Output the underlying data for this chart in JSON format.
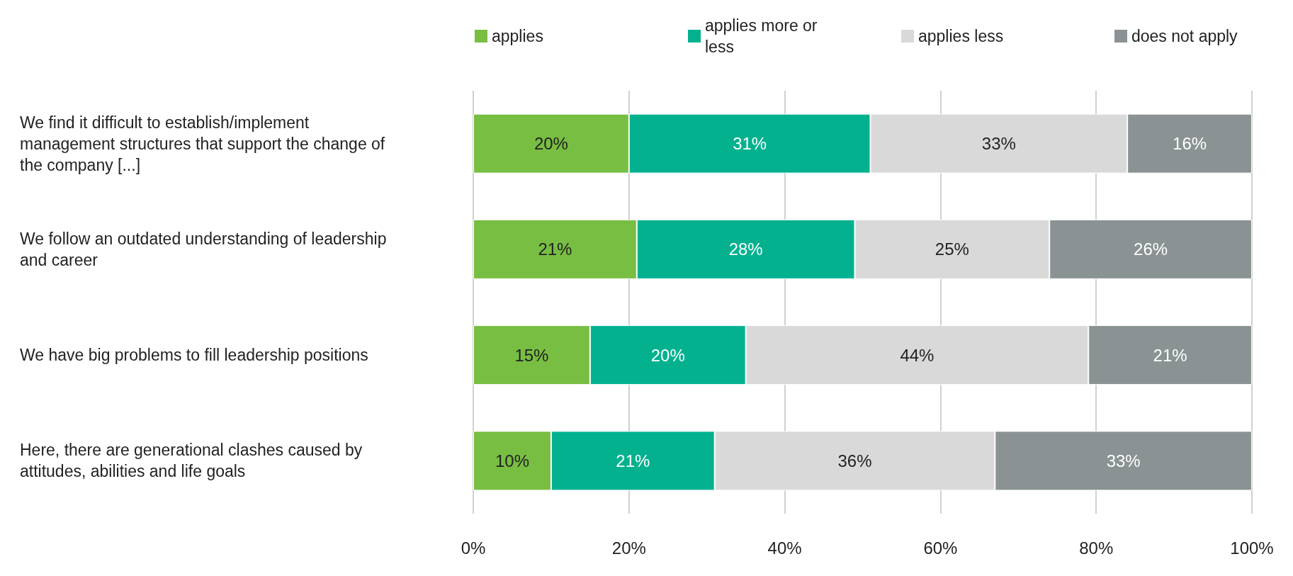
{
  "chart_data": {
    "type": "bar",
    "orientation": "horizontal",
    "stacked": true,
    "categories": [
      "We find it difficult to establish/implement management structures that support the change of the company [...]",
      "We follow an outdated understanding of leadership and career",
      "We have big problems to fill leadership positions",
      "Here, there are generational clashes caused by attitudes, abilities and life goals"
    ],
    "series": [
      {
        "name": "applies",
        "color": "#78be43",
        "values": [
          20,
          21,
          15,
          10
        ],
        "value_labels": [
          "20%",
          "21%",
          "15%",
          "10%"
        ]
      },
      {
        "name": "applies more or less",
        "color": "#03b18f",
        "values": [
          31,
          28,
          20,
          21
        ],
        "value_labels": [
          "31%",
          "28%",
          "20%",
          "21%"
        ]
      },
      {
        "name": "applies less",
        "color": "#d9d9d9",
        "values": [
          33,
          25,
          44,
          36
        ],
        "value_labels": [
          "33%",
          "25%",
          "44%",
          "36%"
        ]
      },
      {
        "name": "does not apply",
        "color": "#8a9293",
        "values": [
          16,
          26,
          21,
          33
        ],
        "value_labels": [
          "16%",
          "26%",
          "21%",
          "33%"
        ]
      }
    ],
    "xlim": [
      0,
      100
    ],
    "xticks": [
      {
        "value": 0,
        "label": "0%"
      },
      {
        "value": 20,
        "label": "20%"
      },
      {
        "value": 40,
        "label": "40%"
      },
      {
        "value": 60,
        "label": "60%"
      },
      {
        "value": 80,
        "label": "80%"
      },
      {
        "value": 100,
        "label": "100%"
      }
    ],
    "grid": "x",
    "legend": "top"
  }
}
